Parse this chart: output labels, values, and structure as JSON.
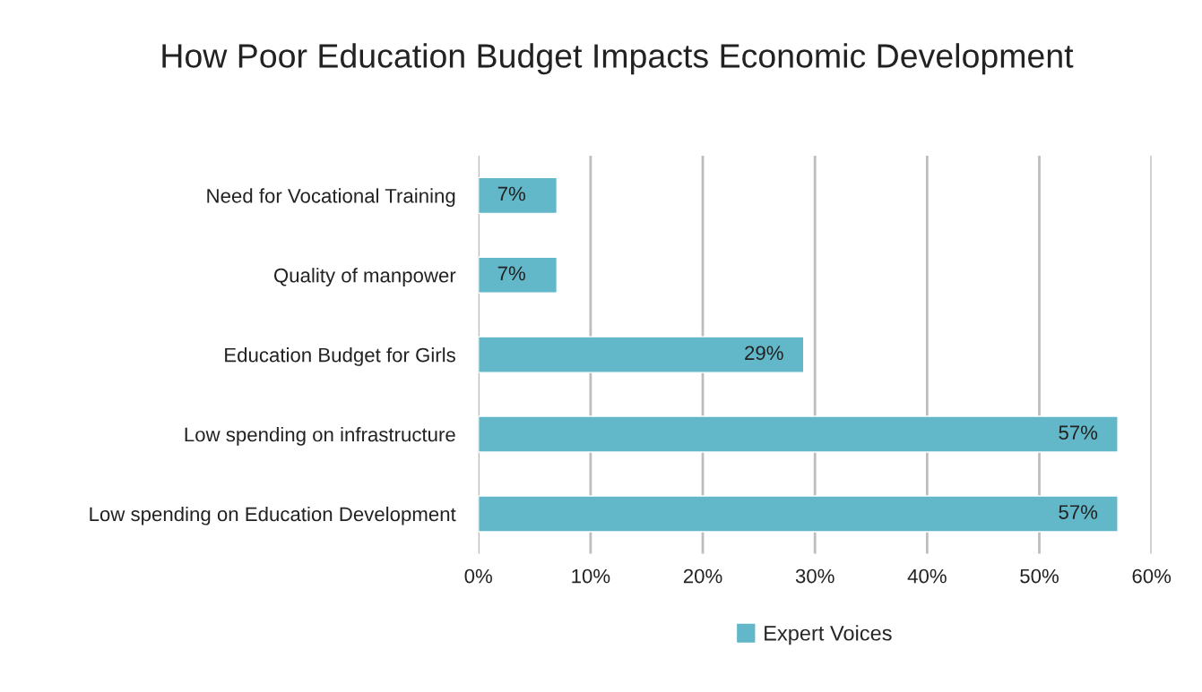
{
  "chart_data": {
    "type": "bar",
    "orientation": "horizontal",
    "title": "How Poor Education Budget Impacts Economic Development",
    "categories": [
      "Need for Vocational Training",
      "Quality of manpower",
      "Education Budget for Girls",
      "Low spending on infrastructure",
      "Low spending on Education Development"
    ],
    "series": [
      {
        "name": "Expert Voices",
        "color": "#62b7c8",
        "values": [
          7,
          7,
          29,
          57,
          57
        ],
        "value_labels": [
          "7%",
          "7%",
          "29%",
          "57%",
          "57%"
        ]
      }
    ],
    "xlim": [
      0,
      60
    ],
    "xticks": [
      {
        "value": 0,
        "label": "0%"
      },
      {
        "value": 10,
        "label": "10%"
      },
      {
        "value": 20,
        "label": "20%"
      },
      {
        "value": 30,
        "label": "30%"
      },
      {
        "value": 40,
        "label": "40%"
      },
      {
        "value": 50,
        "label": "50%"
      },
      {
        "value": 60,
        "label": "60%"
      }
    ],
    "grid": "x",
    "legend": "bottom"
  }
}
